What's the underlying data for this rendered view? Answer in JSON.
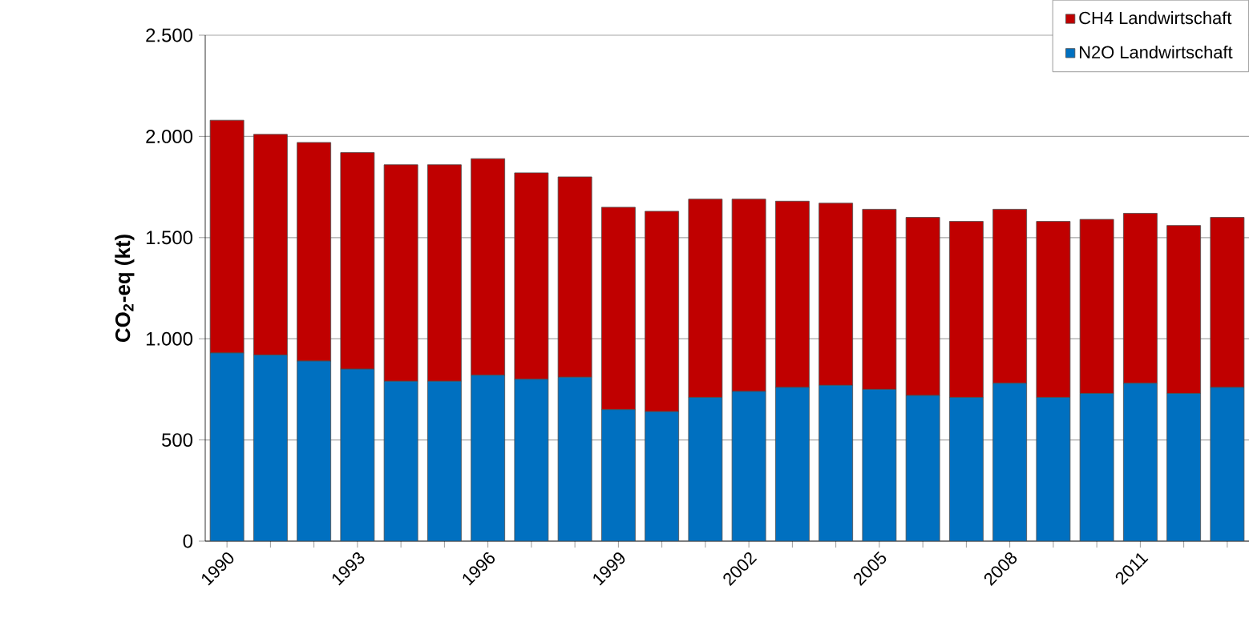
{
  "chart_data": {
    "type": "bar",
    "stacked": true,
    "ylabel": "CO$_{2}$-eq (kt)",
    "categories": [
      "1990",
      null,
      null,
      "1993",
      null,
      null,
      "1996",
      null,
      null,
      "1999",
      null,
      null,
      "2002",
      null,
      null,
      "2005",
      null,
      null,
      "2008",
      null,
      null,
      "2011",
      null,
      null
    ],
    "series": [
      {
        "name": "N2O Landwirtschaft",
        "color": "#0070c0",
        "values": [
          930,
          920,
          890,
          850,
          790,
          790,
          820,
          800,
          810,
          650,
          640,
          710,
          740,
          760,
          770,
          750,
          720,
          710,
          780,
          710,
          730,
          780,
          730,
          760
        ]
      },
      {
        "name": "CH4 Landwirtschaft",
        "color": "#c00000",
        "values": [
          1150,
          1090,
          1080,
          1070,
          1070,
          1070,
          1070,
          1020,
          990,
          1000,
          990,
          980,
          950,
          920,
          900,
          890,
          880,
          870,
          860,
          870,
          860,
          840,
          830,
          840
        ]
      }
    ],
    "ylim": [
      0,
      2500
    ],
    "yticks": [
      0,
      500,
      {
        "value": 1000,
        "label": "1.000"
      },
      {
        "value": 1500,
        "label": "1.500"
      },
      {
        "value": 2000,
        "label": "2.000"
      },
      {
        "value": 2500,
        "label": "2.500"
      }
    ],
    "grid": "y",
    "legend": "top right"
  }
}
